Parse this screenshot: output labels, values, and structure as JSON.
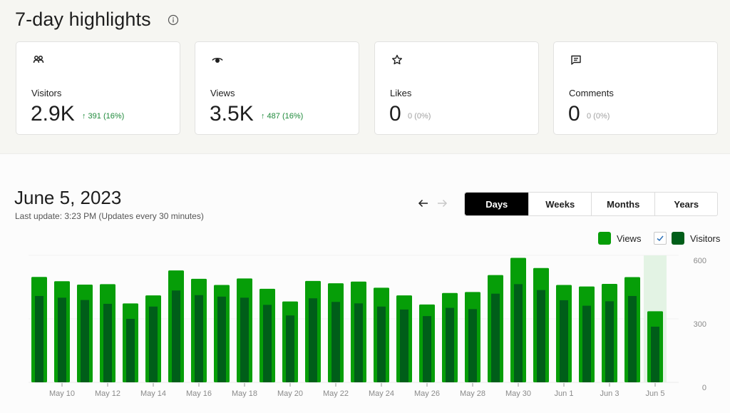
{
  "highlights": {
    "title": "7-day highlights",
    "info_icon": "info-circle-icon",
    "cards": [
      {
        "icon": "people-icon",
        "label": "Visitors",
        "value": "2.9K",
        "delta": "↑ 391 (16%)",
        "trend": "up"
      },
      {
        "icon": "eye-icon",
        "label": "Views",
        "value": "3.5K",
        "delta": "↑ 487 (16%)",
        "trend": "up"
      },
      {
        "icon": "star-icon",
        "label": "Likes",
        "value": "0",
        "delta": "0 (0%)",
        "trend": "flat"
      },
      {
        "icon": "comment-icon",
        "label": "Comments",
        "value": "0",
        "delta": "0 (0%)",
        "trend": "flat"
      }
    ]
  },
  "stats": {
    "date_title": "June 5, 2023",
    "last_update": "Last update: 3:23 PM (Updates every 30 minutes)",
    "nav": {
      "prev": "←",
      "next": "→"
    },
    "periods": [
      {
        "label": "Days",
        "active": true
      },
      {
        "label": "Weeks",
        "active": false
      },
      {
        "label": "Months",
        "active": false
      },
      {
        "label": "Years",
        "active": false
      }
    ],
    "legend": [
      {
        "label": "Views",
        "color": "#069e08",
        "checkbox": false
      },
      {
        "label": "Visitors",
        "color": "#005e19",
        "checkbox": true,
        "checked": true
      }
    ]
  },
  "colors": {
    "views": "#069e08",
    "visitors": "#005e19",
    "highlight": "#e3f3e4",
    "up": "#1f8a3b",
    "active_tab": "#000000"
  },
  "chart_data": {
    "type": "bar",
    "title": "",
    "xlabel": "",
    "ylabel": "",
    "ylim": [
      0,
      600
    ],
    "yticks": [
      0,
      300,
      600
    ],
    "grid": true,
    "legend_position": "top-right",
    "highlighted_category": "Jun 5",
    "categories": [
      "May 9",
      "May 10",
      "May 11",
      "May 12",
      "May 13",
      "May 14",
      "May 15",
      "May 16",
      "May 17",
      "May 18",
      "May 19",
      "May 20",
      "May 21",
      "May 22",
      "May 23",
      "May 24",
      "May 25",
      "May 26",
      "May 27",
      "May 28",
      "May 29",
      "May 30",
      "May 31",
      "Jun 1",
      "Jun 2",
      "Jun 3",
      "Jun 4",
      "Jun 5"
    ],
    "xtick_labels": [
      "May 10",
      "May 12",
      "May 14",
      "May 16",
      "May 18",
      "May 20",
      "May 22",
      "May 24",
      "May 26",
      "May 28",
      "May 30",
      "Jun 1",
      "Jun 3",
      "Jun 5"
    ],
    "series": [
      {
        "name": "Views",
        "values": [
          498,
          478,
          462,
          464,
          373,
          411,
          529,
          489,
          460,
          491,
          442,
          382,
          479,
          468,
          476,
          447,
          411,
          368,
          422,
          427,
          507,
          588,
          540,
          460,
          453,
          465,
          497,
          336
        ]
      },
      {
        "name": "Visitors",
        "values": [
          408,
          400,
          389,
          371,
          300,
          358,
          434,
          412,
          405,
          400,
          366,
          316,
          397,
          380,
          373,
          358,
          344,
          313,
          352,
          346,
          419,
          464,
          436,
          388,
          362,
          383,
          408,
          263
        ]
      }
    ]
  }
}
